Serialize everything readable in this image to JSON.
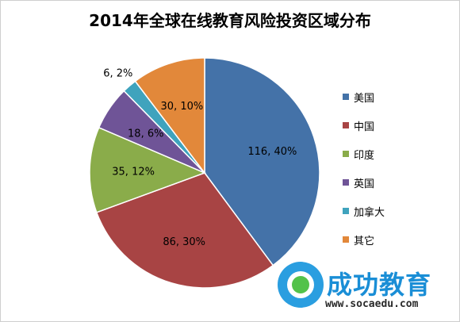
{
  "chart_data": {
    "type": "pie",
    "title": "2014年全球在线教育风险投资区域分布",
    "slices": [
      {
        "name": "美国",
        "value": 116,
        "percent": 40,
        "label": "116, 40%",
        "color": "#4472a8"
      },
      {
        "name": "中国",
        "value": 86,
        "percent": 30,
        "label": "86, 30%",
        "color": "#a84444"
      },
      {
        "name": "印度",
        "value": 35,
        "percent": 12,
        "label": "35, 12%",
        "color": "#8aac4a"
      },
      {
        "name": "英国",
        "value": 18,
        "percent": 6,
        "label": "18, 6%",
        "color": "#6f5497"
      },
      {
        "name": "加拿大",
        "value": 6,
        "percent": 2,
        "label": "6, 2%",
        "color": "#3fa3bd"
      },
      {
        "name": "其它",
        "value": 30,
        "percent": 10,
        "label": "30, 10%",
        "color": "#e2883a"
      }
    ],
    "legend_position": "right"
  },
  "watermark": {
    "brand": "成功教育",
    "url": "www.socaedu.com"
  }
}
